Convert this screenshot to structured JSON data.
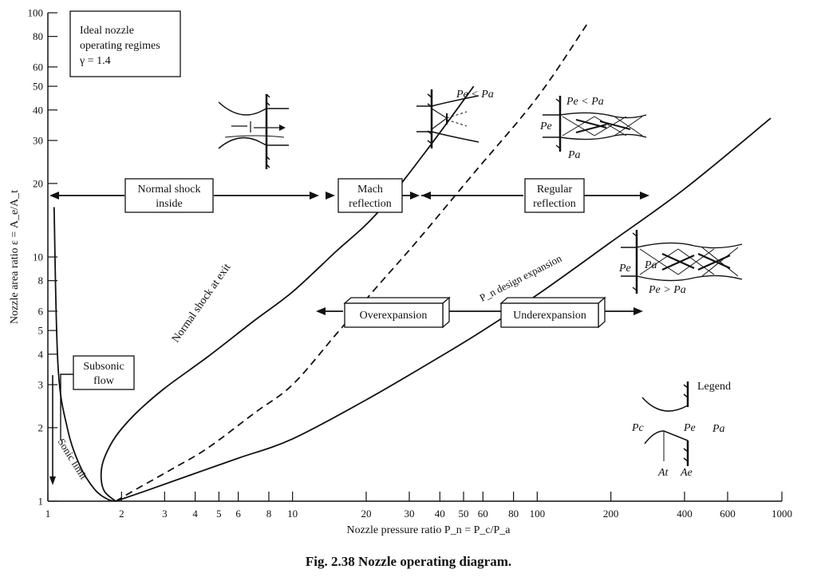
{
  "chart_data": {
    "type": "line",
    "xlabel": "Nozzle pressure ratio P_n = P_c/P_a",
    "ylabel": "Nozzle area ratio ε = A_e/A_t",
    "x_scale": "log",
    "y_scale": "log",
    "xlim": [
      1,
      1000
    ],
    "ylim": [
      1,
      100
    ],
    "x_ticks": [
      "1",
      "2",
      "3",
      "4",
      "5",
      "6",
      "8",
      "10",
      "20",
      "30",
      "40",
      "50",
      "60",
      "80",
      "100",
      "200",
      "400",
      "600",
      "1000"
    ],
    "y_ticks": [
      "1",
      "2",
      "3",
      "4",
      "5",
      "6",
      "8",
      "10",
      "20",
      "30",
      "40",
      "50",
      "60",
      "80",
      "100"
    ],
    "info_box": [
      "Ideal nozzle",
      "operating regimes",
      "γ = 1.4"
    ],
    "series": [
      {
        "name": "Sonic limit",
        "style": "solid",
        "x": [
          1.06,
          1.1,
          1.2,
          1.35,
          1.55,
          1.75,
          1.893
        ],
        "y": [
          16.0,
          3.6,
          2.0,
          1.4,
          1.12,
          1.02,
          1.0
        ]
      },
      {
        "name": "Normal shock at exit",
        "style": "solid",
        "x": [
          1.893,
          1.7,
          1.65,
          1.7,
          1.9,
          2.3,
          3.0,
          4.5,
          7.0,
          10.0,
          15.0,
          22.0,
          35.0,
          55.0
        ],
        "y": [
          1.0,
          1.1,
          1.28,
          1.5,
          1.85,
          2.3,
          2.9,
          3.9,
          5.5,
          7.2,
          10.5,
          15.0,
          27.0,
          50.0
        ]
      },
      {
        "name": "",
        "style": "dashed",
        "x": [
          1.893,
          2.3,
          3.2,
          4.5,
          7.0,
          10.0,
          15.0,
          22.0,
          32.0,
          55.0,
          100.0,
          160.0
        ],
        "y": [
          1.0,
          1.12,
          1.35,
          1.65,
          2.3,
          3.0,
          4.8,
          7.5,
          11.5,
          22.0,
          45.0,
          90.0
        ]
      },
      {
        "name": "P_n design expansion",
        "style": "solid",
        "x": [
          1.893,
          2.5,
          4.0,
          6.0,
          10.0,
          20.0,
          40.0,
          60.0,
          100.0,
          200.0,
          400.0,
          900.0
        ],
        "y": [
          1.0,
          1.1,
          1.3,
          1.5,
          1.8,
          2.6,
          3.9,
          5.0,
          7.0,
          11.5,
          19.0,
          37.0
        ]
      }
    ],
    "regions": [
      {
        "label": [
          "Normal shock",
          "inside"
        ]
      },
      {
        "label": [
          "Mach",
          "reflection"
        ]
      },
      {
        "label": [
          "Regular",
          "reflection"
        ]
      },
      {
        "label": [
          "Overexpansion"
        ]
      },
      {
        "label": [
          "Underexpansion"
        ]
      },
      {
        "label": [
          "Subsonic",
          "flow"
        ]
      }
    ],
    "annotations": {
      "normal_shock_at_exit": "Normal shock at exit",
      "sonic_limit": "Sonic limit",
      "design_expansion": "P_n design expansion",
      "pe_lt_pa": "Pe < Pa",
      "pe_gt_pa": "Pe > Pa",
      "pe": "Pe",
      "pa": "Pa",
      "pc": "Pc",
      "at": "At",
      "ae": "Ae",
      "legend": "Legend"
    }
  },
  "caption": "Fig. 2.38    Nozzle operating diagram."
}
